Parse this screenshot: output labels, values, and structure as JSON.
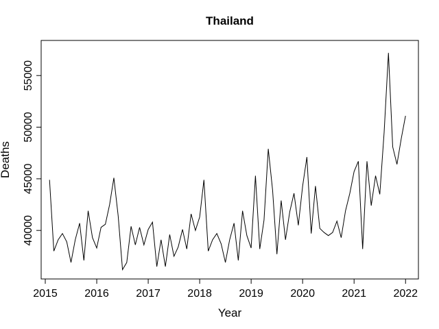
{
  "chart_data": {
    "type": "line",
    "title": "Thailand",
    "xlabel": "Year",
    "ylabel": "Deaths",
    "xlim": [
      2014.92,
      2022.25
    ],
    "ylim": [
      35300,
      58400
    ],
    "x_ticks": [
      2015,
      2016,
      2017,
      2018,
      2019,
      2020,
      2021,
      2022
    ],
    "x_tick_labels": [
      "2015",
      "2016",
      "2017",
      "2018",
      "2019",
      "2020",
      "2021",
      "2022"
    ],
    "y_ticks": [
      40000,
      45000,
      50000,
      55000
    ],
    "y_tick_labels": [
      "40000",
      "45000",
      "50000",
      "55000"
    ],
    "grid": false,
    "legend": "none",
    "line_color": "#000000",
    "series": [
      {
        "x": [
          2015.083,
          2015.167,
          2015.25,
          2015.333,
          2015.417,
          2015.5,
          2015.583,
          2015.667,
          2015.75,
          2015.833,
          2015.917,
          2016.0,
          2016.083,
          2016.167,
          2016.25,
          2016.333,
          2016.417,
          2016.5,
          2016.583,
          2016.667,
          2016.75,
          2016.833,
          2016.917,
          2017.0,
          2017.083,
          2017.167,
          2017.25,
          2017.333,
          2017.417,
          2017.5,
          2017.583,
          2017.667,
          2017.75,
          2017.833,
          2017.917,
          2018.0,
          2018.083,
          2018.167,
          2018.25,
          2018.333,
          2018.417,
          2018.5,
          2018.583,
          2018.667,
          2018.75,
          2018.833,
          2018.917,
          2019.0,
          2019.083,
          2019.167,
          2019.25,
          2019.333,
          2019.417,
          2019.5,
          2019.583,
          2019.667,
          2019.75,
          2019.833,
          2019.917,
          2020.0,
          2020.083,
          2020.167,
          2020.25,
          2020.333,
          2020.417,
          2020.5,
          2020.583,
          2020.667,
          2020.75,
          2020.833,
          2020.917,
          2021.0,
          2021.083,
          2021.167,
          2021.25,
          2021.333,
          2021.417,
          2021.5,
          2021.583,
          2021.667,
          2021.75,
          2021.833,
          2021.917,
          2022.0
        ],
        "values": [
          44900,
          38000,
          39100,
          39700,
          38900,
          36900,
          39100,
          40700,
          37100,
          41900,
          39300,
          38300,
          40300,
          40600,
          42500,
          45100,
          41400,
          36200,
          36900,
          40400,
          38600,
          40300,
          38600,
          40100,
          40800,
          36500,
          39100,
          36500,
          39600,
          37500,
          38400,
          40100,
          38200,
          41600,
          40000,
          41300,
          44900,
          38000,
          39100,
          39700,
          38700,
          36900,
          39100,
          40700,
          37100,
          41900,
          39500,
          38300,
          45300,
          38200,
          41000,
          47900,
          43900,
          37700,
          42900,
          39100,
          41800,
          43600,
          40500,
          44300,
          47100,
          39700,
          44300,
          40200,
          39800,
          39500,
          39800,
          40900,
          39300,
          41900,
          43600,
          45700,
          46700,
          38200,
          46700,
          42400,
          45300,
          43500,
          49500,
          57200,
          48100,
          46400,
          48900,
          51100
        ]
      }
    ]
  }
}
